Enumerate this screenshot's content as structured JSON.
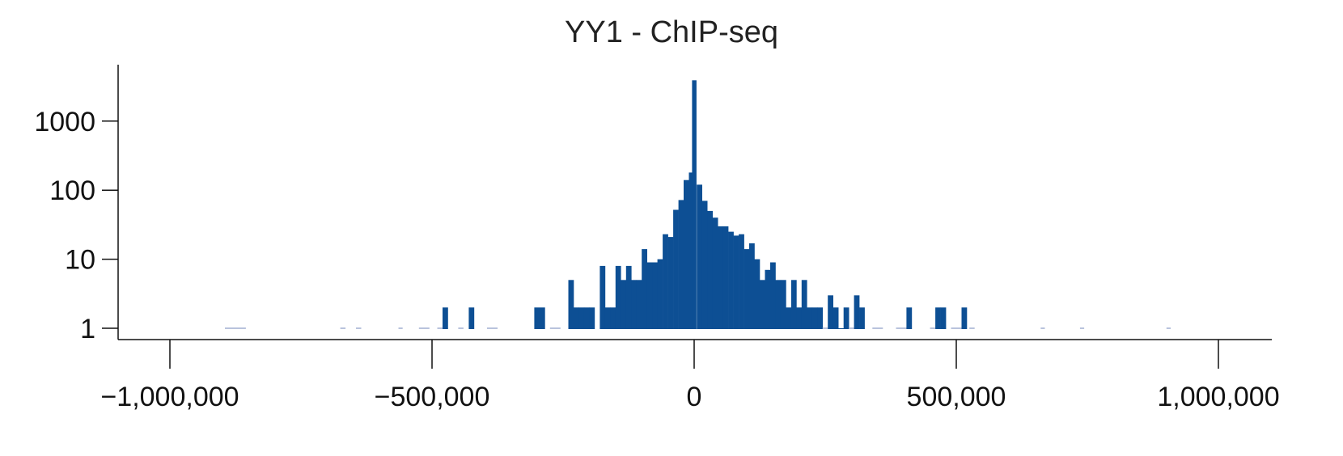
{
  "chart_data": {
    "type": "bar",
    "title": "YY1 - ChIP-seq",
    "xlabel": "",
    "ylabel": "",
    "x_scale": "linear",
    "y_scale": "log",
    "xlim": [
      -1100000,
      1100000
    ],
    "ylim": [
      0.6,
      5000
    ],
    "x_ticks": [
      -1000000,
      -500000,
      0,
      500000,
      1000000
    ],
    "x_tick_labels": [
      "−1,000,000",
      "−500,000",
      "0",
      "500,000",
      "1,000,000"
    ],
    "y_ticks": [
      1,
      10,
      100,
      1000
    ],
    "y_tick_labels": [
      "1",
      "10",
      "100",
      "1000"
    ],
    "grid": false,
    "legend": "none",
    "bar_color": "#0d4f94",
    "faint_color": "#b9c3dd",
    "bin_width": 10000,
    "bins": [
      {
        "x": -875000,
        "count": 1,
        "width": 40000,
        "faint": true
      },
      {
        "x": -670000,
        "count": 1,
        "width": 10000,
        "faint": true
      },
      {
        "x": -640000,
        "count": 1,
        "width": 10000,
        "faint": true
      },
      {
        "x": -560000,
        "count": 1,
        "width": 8000,
        "faint": true
      },
      {
        "x": -515000,
        "count": 1,
        "width": 20000,
        "faint": true
      },
      {
        "x": -485000,
        "count": 1,
        "width": 10000,
        "faint": true
      },
      {
        "x": -475000,
        "count": 2,
        "width": 10000
      },
      {
        "x": -445000,
        "count": 1,
        "width": 10000,
        "faint": true
      },
      {
        "x": -425000,
        "count": 2,
        "width": 10000
      },
      {
        "x": -385000,
        "count": 1,
        "width": 20000,
        "faint": true
      },
      {
        "x": -295000,
        "count": 2,
        "width": 20000
      },
      {
        "x": -265000,
        "count": 1,
        "width": 20000,
        "faint": true
      },
      {
        "x": -235000,
        "count": 5,
        "width": 10000
      },
      {
        "x": -225000,
        "count": 2,
        "width": 10000
      },
      {
        "x": -215000,
        "count": 2,
        "width": 10000
      },
      {
        "x": -205000,
        "count": 2,
        "width": 10000
      },
      {
        "x": -195000,
        "count": 2,
        "width": 10000
      },
      {
        "x": -175000,
        "count": 8,
        "width": 10000
      },
      {
        "x": -165000,
        "count": 2,
        "width": 10000
      },
      {
        "x": -155000,
        "count": 2,
        "width": 10000
      },
      {
        "x": -145000,
        "count": 8,
        "width": 10000
      },
      {
        "x": -135000,
        "count": 5,
        "width": 10000
      },
      {
        "x": -125000,
        "count": 8,
        "width": 10000
      },
      {
        "x": -115000,
        "count": 5,
        "width": 10000
      },
      {
        "x": -105000,
        "count": 5,
        "width": 10000
      },
      {
        "x": -95000,
        "count": 14,
        "width": 10000
      },
      {
        "x": -85000,
        "count": 9,
        "width": 10000
      },
      {
        "x": -75000,
        "count": 9,
        "width": 10000
      },
      {
        "x": -65000,
        "count": 10,
        "width": 10000
      },
      {
        "x": -55000,
        "count": 23,
        "width": 10000
      },
      {
        "x": -45000,
        "count": 21,
        "width": 10000
      },
      {
        "x": -35000,
        "count": 52,
        "width": 10000
      },
      {
        "x": -25000,
        "count": 72,
        "width": 10000
      },
      {
        "x": -15000,
        "count": 140,
        "width": 10000
      },
      {
        "x": -5000,
        "count": 180,
        "width": 10000
      },
      {
        "x": 0,
        "count": 3900,
        "width": 8000
      },
      {
        "x": 10000,
        "count": 120,
        "width": 10000
      },
      {
        "x": 20000,
        "count": 70,
        "width": 10000
      },
      {
        "x": 30000,
        "count": 50,
        "width": 10000
      },
      {
        "x": 40000,
        "count": 40,
        "width": 10000
      },
      {
        "x": 50000,
        "count": 30,
        "width": 10000
      },
      {
        "x": 60000,
        "count": 30,
        "width": 10000
      },
      {
        "x": 70000,
        "count": 25,
        "width": 10000
      },
      {
        "x": 80000,
        "count": 22,
        "width": 10000
      },
      {
        "x": 90000,
        "count": 23,
        "width": 10000
      },
      {
        "x": 100000,
        "count": 14,
        "width": 10000
      },
      {
        "x": 110000,
        "count": 17,
        "width": 10000
      },
      {
        "x": 120000,
        "count": 10,
        "width": 10000
      },
      {
        "x": 130000,
        "count": 5,
        "width": 10000
      },
      {
        "x": 140000,
        "count": 7,
        "width": 10000
      },
      {
        "x": 150000,
        "count": 9,
        "width": 10000
      },
      {
        "x": 160000,
        "count": 5,
        "width": 10000
      },
      {
        "x": 170000,
        "count": 5,
        "width": 10000
      },
      {
        "x": 180000,
        "count": 2,
        "width": 10000
      },
      {
        "x": 190000,
        "count": 5,
        "width": 10000
      },
      {
        "x": 200000,
        "count": 2,
        "width": 10000
      },
      {
        "x": 210000,
        "count": 5,
        "width": 10000
      },
      {
        "x": 220000,
        "count": 2,
        "width": 10000
      },
      {
        "x": 230000,
        "count": 2,
        "width": 10000
      },
      {
        "x": 240000,
        "count": 2,
        "width": 10000
      },
      {
        "x": 250000,
        "count": 1,
        "width": 10000,
        "faint": true
      },
      {
        "x": 260000,
        "count": 3,
        "width": 10000
      },
      {
        "x": 270000,
        "count": 2,
        "width": 10000
      },
      {
        "x": 280000,
        "count": 1,
        "width": 10000
      },
      {
        "x": 290000,
        "count": 2,
        "width": 10000
      },
      {
        "x": 300000,
        "count": 1,
        "width": 10000,
        "faint": true
      },
      {
        "x": 310000,
        "count": 3,
        "width": 10000
      },
      {
        "x": 320000,
        "count": 2,
        "width": 10000
      },
      {
        "x": 350000,
        "count": 1,
        "width": 20000,
        "faint": true
      },
      {
        "x": 395000,
        "count": 1,
        "width": 20000,
        "faint": true
      },
      {
        "x": 410000,
        "count": 2,
        "width": 10000
      },
      {
        "x": 455000,
        "count": 1,
        "width": 10000,
        "faint": true
      },
      {
        "x": 465000,
        "count": 2,
        "width": 10000
      },
      {
        "x": 475000,
        "count": 2,
        "width": 10000
      },
      {
        "x": 500000,
        "count": 1,
        "width": 20000,
        "faint": true
      },
      {
        "x": 515000,
        "count": 2,
        "width": 10000
      },
      {
        "x": 530000,
        "count": 1,
        "width": 10000,
        "faint": true
      },
      {
        "x": 665000,
        "count": 1,
        "width": 8000,
        "faint": true
      },
      {
        "x": 740000,
        "count": 1,
        "width": 8000,
        "faint": true
      },
      {
        "x": 905000,
        "count": 1,
        "width": 8000,
        "faint": true
      }
    ]
  }
}
